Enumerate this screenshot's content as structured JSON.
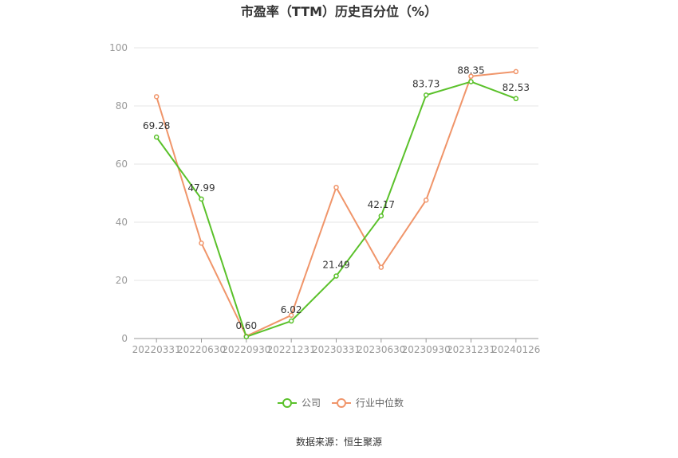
{
  "chart_data": {
    "type": "line",
    "title": "市盈率（TTM）历史百分位（%）",
    "categories": [
      "20220331",
      "20220630",
      "20220930",
      "20221231",
      "20230331",
      "20230630",
      "20230930",
      "20231231",
      "20240126"
    ],
    "ylim": [
      0,
      100
    ],
    "yticks": [
      0,
      20,
      40,
      60,
      80,
      100
    ],
    "grid": true,
    "legend_position": "bottom",
    "series": [
      {
        "name": "公司",
        "color": "#5ac12a",
        "values": [
          69.28,
          47.99,
          0.6,
          6.02,
          21.49,
          42.17,
          83.73,
          88.35,
          82.53
        ],
        "labels": [
          "69.28",
          "47.99",
          "0.60",
          "6.02",
          "21.49",
          "42.17",
          "83.73",
          "88.35",
          "82.53"
        ]
      },
      {
        "name": "行业中位数",
        "color": "#f0956a",
        "values": [
          83.2,
          32.8,
          0.8,
          8.0,
          52.0,
          24.5,
          47.6,
          90.2,
          91.8
        ]
      }
    ]
  },
  "source": "数据来源：恒生聚源"
}
